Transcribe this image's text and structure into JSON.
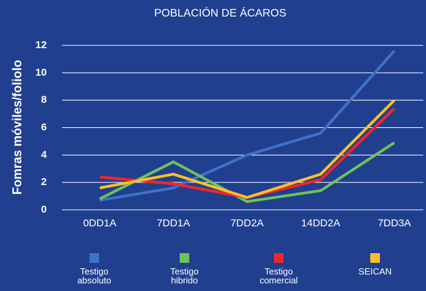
{
  "chart_data": {
    "type": "line",
    "title": "POBLACIÓN DE ÁCAROS",
    "y_label": "Fomras móviles/foliolo",
    "categories": [
      "0DD1A",
      "7DD1A",
      "7DD2A",
      "14DD2A",
      "7DD3A"
    ],
    "series": [
      {
        "name": "Testigo absoluto",
        "color": "#3f72c8",
        "values": [
          0.7,
          1.6,
          4.0,
          5.6,
          11.6
        ]
      },
      {
        "name": "Testigo hibrido",
        "color": "#6ec25a",
        "values": [
          0.8,
          3.5,
          0.6,
          1.4,
          4.9
        ]
      },
      {
        "name": "Testigo comercial",
        "color": "#f0262b",
        "values": [
          2.4,
          1.9,
          0.9,
          2.2,
          7.4
        ]
      },
      {
        "name": "SEICAN",
        "color": "#fbbf2c",
        "values": [
          1.6,
          2.6,
          0.9,
          2.6,
          8.0
        ]
      }
    ],
    "ylim": [
      0,
      12
    ],
    "yticks": [
      0,
      2,
      4,
      6,
      8,
      10,
      12
    ],
    "grid": true
  }
}
